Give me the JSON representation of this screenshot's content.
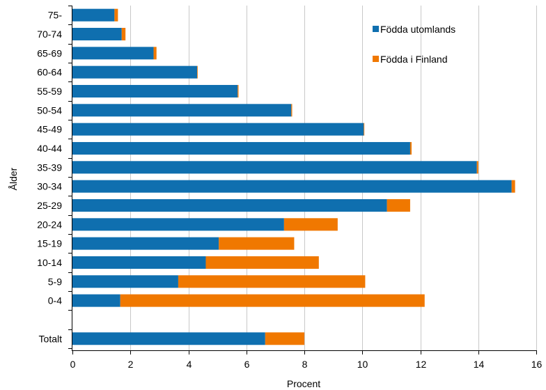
{
  "chart_data": {
    "type": "bar",
    "orientation": "horizontal",
    "stacked": true,
    "categories": [
      "75-",
      "70-74",
      "65-69",
      "60-64",
      "55-59",
      "50-54",
      "45-49",
      "40-44",
      "35-39",
      "30-34",
      "25-29",
      "20-24",
      "15-19",
      "10-14",
      "5-9",
      "0-4",
      "",
      "Totalt"
    ],
    "series": [
      {
        "name": "Födda utomlands",
        "color": "#0f6faf",
        "values": [
          1.45,
          1.7,
          2.8,
          4.3,
          5.7,
          7.55,
          10.05,
          11.65,
          13.95,
          15.15,
          10.85,
          7.3,
          5.05,
          4.6,
          3.65,
          1.65,
          null,
          6.65
        ]
      },
      {
        "name": "Födda i Finland",
        "color": "#f07800",
        "values": [
          0.12,
          0.13,
          0.1,
          0.02,
          0.03,
          0.03,
          0.02,
          0.05,
          0.05,
          0.12,
          0.8,
          1.85,
          2.6,
          3.9,
          6.45,
          10.5,
          null,
          1.35
        ]
      }
    ],
    "xlabel": "Procent",
    "ylabel": "Ålder",
    "xlim": [
      0,
      16
    ],
    "xticks": [
      "0",
      "2",
      "4",
      "6",
      "8",
      "10",
      "12",
      "14",
      "16"
    ],
    "grid": "vertical",
    "legend_position": "top-right"
  }
}
